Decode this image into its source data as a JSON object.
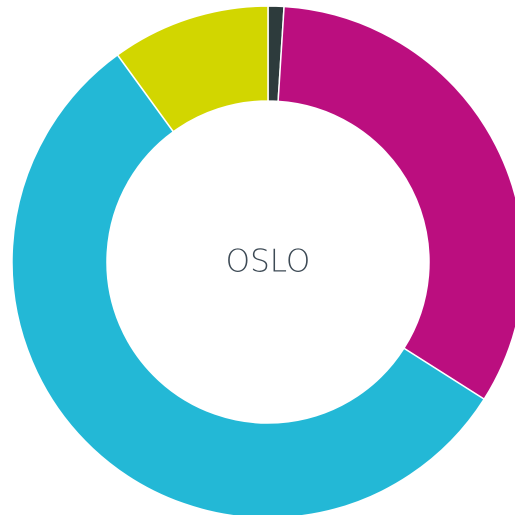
{
  "chart_data": {
    "type": "donut",
    "title": "OSLO",
    "values": [
      1,
      33,
      56,
      10
    ],
    "colors": [
      "#2d3b3c",
      "#bb0e7f",
      "#23b8d6",
      "#d2d600"
    ]
  }
}
